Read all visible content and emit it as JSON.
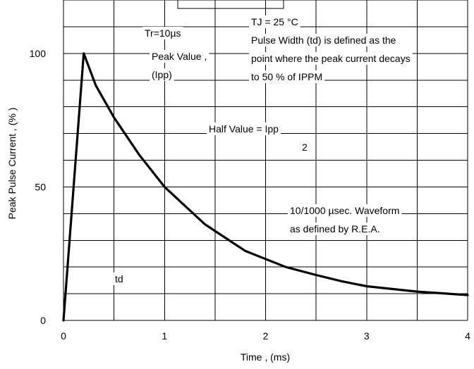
{
  "chart_data": {
    "type": "line",
    "title": "",
    "xlabel": "Time , (ms)",
    "ylabel": "Peak Pulse Current , (% )",
    "xlim": [
      0,
      4
    ],
    "ylim": [
      0,
      120
    ],
    "x_ticks": [
      0,
      1,
      2,
      3,
      4
    ],
    "y_ticks": [
      0,
      50,
      100
    ],
    "x_tick_labels": [
      "0",
      "1",
      "2",
      "3",
      "4"
    ],
    "y_tick_labels": [
      "0",
      "50",
      "100"
    ],
    "grid": true,
    "series": [
      {
        "x": [
          0,
          0.2,
          0.32,
          0.5,
          0.75,
          1.0,
          1.2,
          1.4,
          1.6,
          1.8,
          2.0,
          2.2,
          2.5,
          2.75,
          3.0,
          3.5,
          4.0
        ],
        "y": [
          0,
          100,
          88,
          76,
          62,
          50,
          43,
          36,
          31,
          26,
          23,
          20,
          17,
          14.7,
          12.8,
          10.8,
          9.5
        ]
      }
    ],
    "annotations": {
      "tr": "Tr=10µs",
      "peak_line1": "Peak Value ,",
      "peak_line2": "(Ipp)",
      "tj": "TJ = 25 °C",
      "pw_line1": "Pulse Width (td) is defined as the",
      "pw_line2": "point where the peak current decays",
      "pw_line3": "to 50 % of IPPM",
      "half_line1": "Half Value = Ipp",
      "half_line2": "2",
      "wave_line1": "10/1000 µsec. Waveform",
      "wave_line2": "as defined by R.E.A.",
      "td": "td"
    }
  }
}
